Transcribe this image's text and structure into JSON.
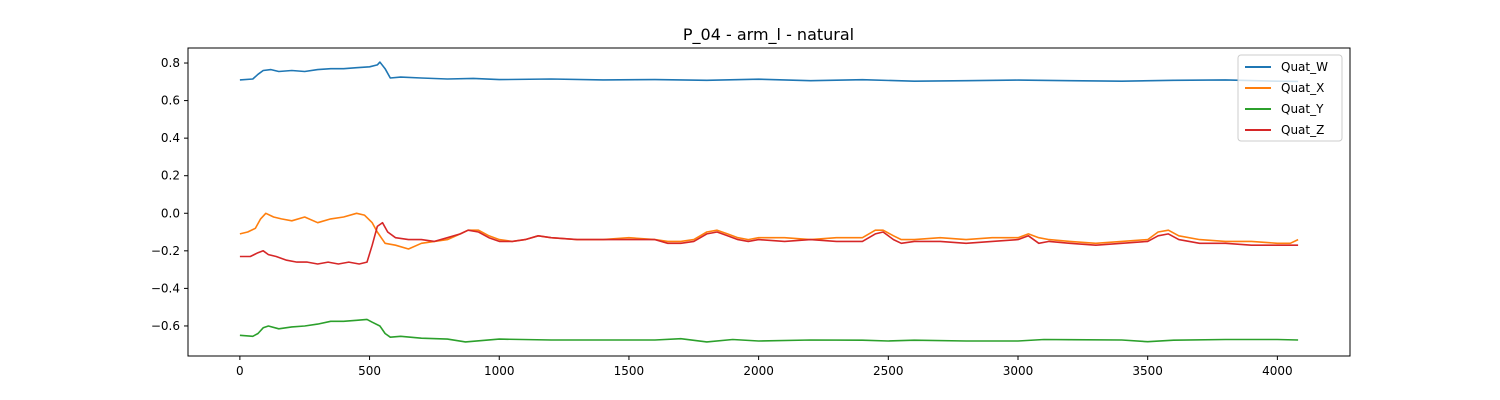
{
  "chart_data": {
    "type": "line",
    "title": "P_04 - arm_l - natural",
    "xlabel": "",
    "ylabel": "",
    "xlim": [
      -200,
      4280
    ],
    "ylim": [
      -0.76,
      0.88
    ],
    "x_ticks": [
      0,
      500,
      1000,
      1500,
      2000,
      2500,
      3000,
      3500,
      4000
    ],
    "x_tick_labels": [
      "0",
      "500",
      "1000",
      "1500",
      "2000",
      "2500",
      "3000",
      "3500",
      "4000"
    ],
    "y_ticks": [
      -0.6,
      -0.4,
      -0.2,
      0.0,
      0.2,
      0.4,
      0.6,
      0.8
    ],
    "y_tick_labels": [
      "−0.6",
      "−0.4",
      "−0.2",
      "0.0",
      "0.2",
      "0.4",
      "0.6",
      "0.8"
    ],
    "grid": false,
    "legend_position": "top-right",
    "series": [
      {
        "name": "Quat_W",
        "color": "#1f77b4",
        "x": [
          0,
          50,
          70,
          90,
          120,
          150,
          200,
          250,
          300,
          350,
          400,
          450,
          500,
          530,
          540,
          560,
          580,
          620,
          700,
          800,
          900,
          1000,
          1200,
          1400,
          1600,
          1800,
          2000,
          2200,
          2400,
          2600,
          2800,
          3000,
          3200,
          3400,
          3600,
          3800,
          4000,
          4080
        ],
        "y": [
          0.71,
          0.715,
          0.74,
          0.76,
          0.765,
          0.755,
          0.76,
          0.755,
          0.765,
          0.77,
          0.77,
          0.775,
          0.78,
          0.79,
          0.805,
          0.77,
          0.72,
          0.725,
          0.72,
          0.715,
          0.718,
          0.712,
          0.715,
          0.71,
          0.712,
          0.708,
          0.714,
          0.706,
          0.711,
          0.703,
          0.706,
          0.709,
          0.706,
          0.703,
          0.708,
          0.71,
          0.703,
          0.702
        ]
      },
      {
        "name": "Quat_X",
        "color": "#ff7f0e",
        "x": [
          0,
          30,
          60,
          80,
          100,
          130,
          160,
          200,
          250,
          300,
          350,
          400,
          450,
          480,
          510,
          530,
          560,
          600,
          650,
          700,
          750,
          800,
          850,
          880,
          920,
          960,
          1000,
          1050,
          1100,
          1150,
          1200,
          1300,
          1400,
          1500,
          1600,
          1650,
          1700,
          1750,
          1800,
          1840,
          1880,
          1920,
          1960,
          2000,
          2100,
          2200,
          2300,
          2400,
          2450,
          2480,
          2520,
          2550,
          2600,
          2700,
          2800,
          2900,
          3000,
          3040,
          3080,
          3120,
          3200,
          3300,
          3400,
          3500,
          3540,
          3580,
          3620,
          3700,
          3800,
          3900,
          4000,
          4050,
          4080
        ],
        "y": [
          -0.11,
          -0.1,
          -0.08,
          -0.03,
          0.0,
          -0.02,
          -0.03,
          -0.04,
          -0.02,
          -0.05,
          -0.03,
          -0.02,
          0.0,
          -0.01,
          -0.05,
          -0.1,
          -0.16,
          -0.17,
          -0.19,
          -0.16,
          -0.15,
          -0.14,
          -0.11,
          -0.09,
          -0.09,
          -0.12,
          -0.14,
          -0.15,
          -0.14,
          -0.12,
          -0.13,
          -0.14,
          -0.14,
          -0.13,
          -0.14,
          -0.15,
          -0.15,
          -0.14,
          -0.1,
          -0.09,
          -0.11,
          -0.13,
          -0.14,
          -0.13,
          -0.13,
          -0.14,
          -0.13,
          -0.13,
          -0.09,
          -0.09,
          -0.12,
          -0.14,
          -0.14,
          -0.13,
          -0.14,
          -0.13,
          -0.13,
          -0.11,
          -0.13,
          -0.14,
          -0.15,
          -0.16,
          -0.15,
          -0.14,
          -0.1,
          -0.09,
          -0.12,
          -0.14,
          -0.15,
          -0.15,
          -0.16,
          -0.16,
          -0.14
        ]
      },
      {
        "name": "Quat_Y",
        "color": "#2ca02c",
        "x": [
          0,
          50,
          70,
          90,
          110,
          150,
          200,
          250,
          300,
          350,
          400,
          450,
          490,
          510,
          540,
          560,
          580,
          620,
          700,
          800,
          870,
          1000,
          1200,
          1400,
          1600,
          1700,
          1800,
          1900,
          2000,
          2200,
          2400,
          2500,
          2600,
          2800,
          3000,
          3100,
          3200,
          3400,
          3500,
          3600,
          3800,
          4000,
          4080
        ],
        "y": [
          -0.65,
          -0.655,
          -0.64,
          -0.61,
          -0.6,
          -0.615,
          -0.605,
          -0.6,
          -0.59,
          -0.575,
          -0.575,
          -0.57,
          -0.565,
          -0.58,
          -0.6,
          -0.64,
          -0.66,
          -0.655,
          -0.665,
          -0.67,
          -0.685,
          -0.67,
          -0.675,
          -0.675,
          -0.675,
          -0.668,
          -0.685,
          -0.672,
          -0.68,
          -0.675,
          -0.676,
          -0.68,
          -0.676,
          -0.68,
          -0.68,
          -0.672,
          -0.673,
          -0.675,
          -0.684,
          -0.676,
          -0.672,
          -0.672,
          -0.675
        ]
      },
      {
        "name": "Quat_Z",
        "color": "#d62728",
        "x": [
          0,
          40,
          70,
          90,
          110,
          140,
          180,
          220,
          260,
          300,
          340,
          380,
          420,
          460,
          490,
          510,
          530,
          550,
          570,
          600,
          650,
          700,
          750,
          800,
          850,
          880,
          920,
          960,
          1000,
          1050,
          1100,
          1150,
          1200,
          1300,
          1400,
          1500,
          1600,
          1650,
          1700,
          1750,
          1800,
          1840,
          1880,
          1920,
          1960,
          2000,
          2100,
          2200,
          2300,
          2400,
          2450,
          2480,
          2520,
          2550,
          2600,
          2700,
          2800,
          2900,
          3000,
          3040,
          3080,
          3120,
          3200,
          3300,
          3400,
          3500,
          3540,
          3580,
          3620,
          3700,
          3800,
          3900,
          4000,
          4050,
          4080
        ],
        "y": [
          -0.23,
          -0.23,
          -0.21,
          -0.2,
          -0.22,
          -0.23,
          -0.25,
          -0.26,
          -0.26,
          -0.27,
          -0.26,
          -0.27,
          -0.26,
          -0.27,
          -0.26,
          -0.17,
          -0.07,
          -0.05,
          -0.1,
          -0.13,
          -0.14,
          -0.14,
          -0.15,
          -0.13,
          -0.11,
          -0.09,
          -0.1,
          -0.13,
          -0.15,
          -0.15,
          -0.14,
          -0.12,
          -0.13,
          -0.14,
          -0.14,
          -0.14,
          -0.14,
          -0.16,
          -0.16,
          -0.15,
          -0.11,
          -0.1,
          -0.12,
          -0.14,
          -0.15,
          -0.14,
          -0.15,
          -0.14,
          -0.15,
          -0.15,
          -0.11,
          -0.1,
          -0.14,
          -0.16,
          -0.15,
          -0.15,
          -0.16,
          -0.15,
          -0.14,
          -0.12,
          -0.16,
          -0.15,
          -0.16,
          -0.17,
          -0.16,
          -0.15,
          -0.12,
          -0.11,
          -0.14,
          -0.16,
          -0.16,
          -0.17,
          -0.17,
          -0.17,
          -0.17
        ]
      }
    ]
  }
}
